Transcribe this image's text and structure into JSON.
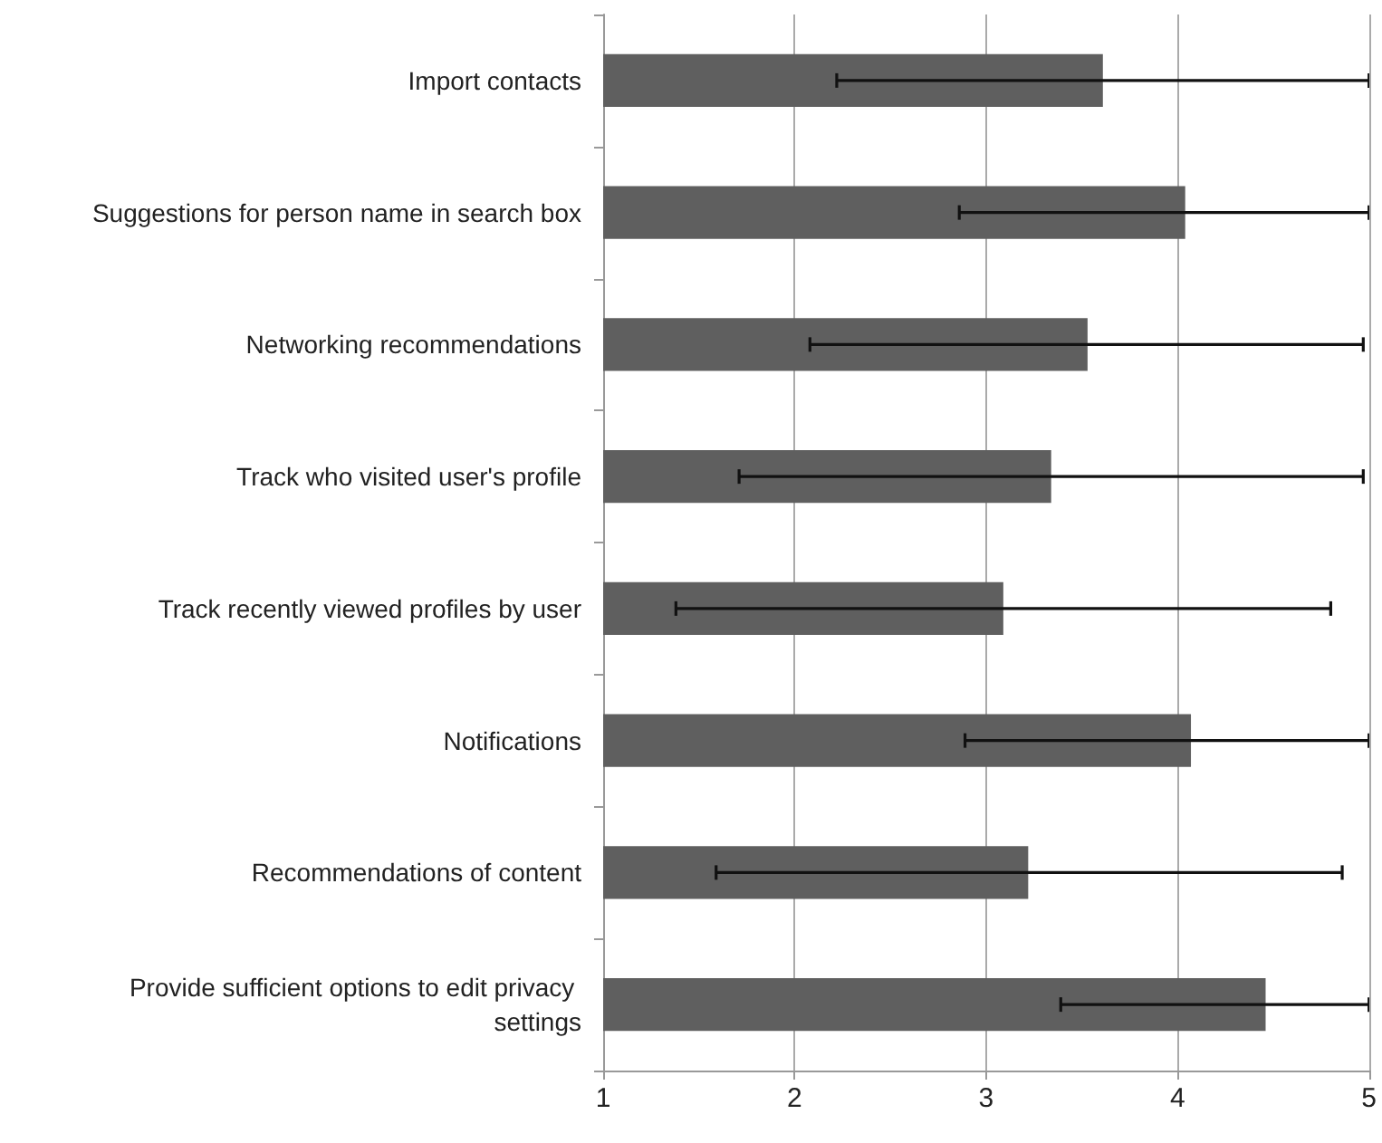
{
  "chart_data": {
    "type": "bar",
    "orientation": "horizontal",
    "categories": [
      "Import contacts",
      "Suggestions for person name in search box",
      "Networking recommendations",
      "Track who visited user's profile",
      "Track recently viewed profiles by user",
      "Notifications",
      "Recommendations of content",
      "Provide sufficient options to edit privacy settings"
    ],
    "values": [
      3.61,
      4.04,
      3.53,
      3.34,
      3.09,
      4.07,
      3.22,
      4.46
    ],
    "errors": [
      [
        2.22,
        5
      ],
      [
        2.86,
        5
      ],
      [
        2.08,
        4.97
      ],
      [
        1.71,
        4.97
      ],
      [
        1.38,
        4.8
      ],
      [
        2.89,
        5
      ],
      [
        1.59,
        4.86
      ],
      [
        3.39,
        5
      ]
    ],
    "color": "#5f5f5f",
    "xlim": [
      1,
      5
    ],
    "xticks": [
      1,
      2,
      3,
      4,
      5
    ],
    "grid": "x"
  }
}
